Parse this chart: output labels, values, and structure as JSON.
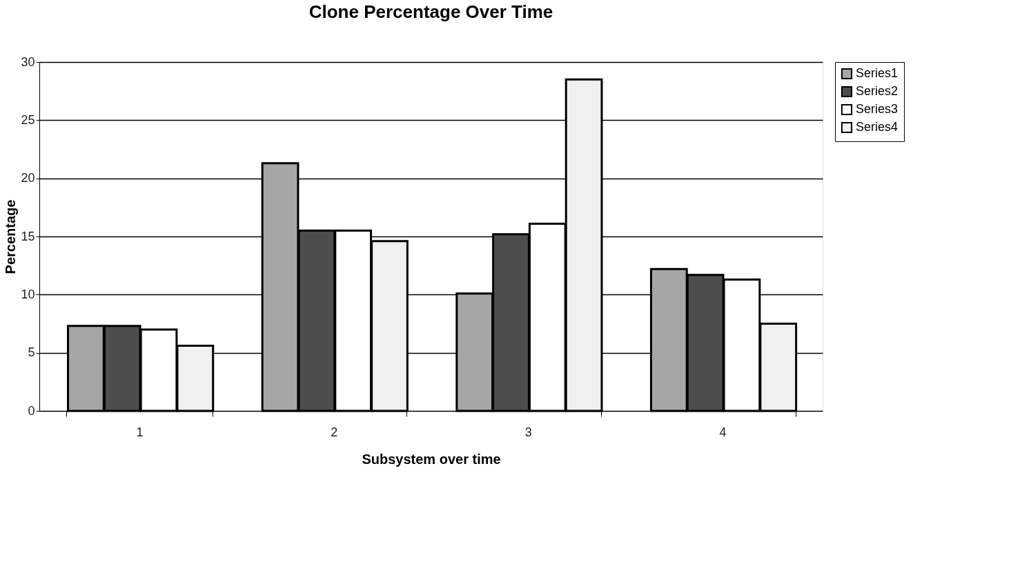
{
  "chart_data": {
    "type": "bar",
    "title": "Clone Percentage Over Time",
    "xlabel": "Subsystem over time",
    "ylabel": "Percentage",
    "categories": [
      "1",
      "2",
      "3",
      "4"
    ],
    "series": [
      {
        "name": "Series1",
        "color": "#a6a6a6",
        "values": [
          7.3,
          21.3,
          10.1,
          12.2
        ]
      },
      {
        "name": "Series2",
        "color": "#4d4d4d",
        "values": [
          7.3,
          15.5,
          15.2,
          11.7
        ]
      },
      {
        "name": "Series3",
        "color": "#ffffff",
        "values": [
          7.0,
          15.5,
          16.1,
          11.3
        ]
      },
      {
        "name": "Series4",
        "color": "#f0f0f0",
        "values": [
          5.6,
          14.6,
          28.5,
          7.5
        ]
      }
    ],
    "ylim": [
      0,
      30
    ],
    "yticks": [
      0,
      5,
      10,
      15,
      20,
      25,
      30
    ],
    "grid": "y",
    "legend": "right"
  }
}
